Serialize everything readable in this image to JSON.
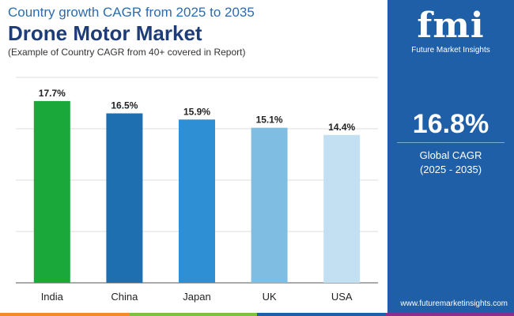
{
  "header": {
    "supertitle": "Country growth CAGR from 2025 to 2035",
    "title": "Drone Motor Market",
    "subtitle": "(Example of Country CAGR from 40+ covered in Report)"
  },
  "chart_data": {
    "type": "bar",
    "categories": [
      "India",
      "China",
      "Japan",
      "UK",
      "USA"
    ],
    "values": [
      17.7,
      16.5,
      15.9,
      15.1,
      14.4
    ],
    "value_labels": [
      "17.7%",
      "16.5%",
      "15.9%",
      "15.1%",
      "14.4%"
    ],
    "colors": [
      "#1aa83a",
      "#1e6fb0",
      "#2e8fd4",
      "#7fbde3",
      "#c2e0f2"
    ],
    "ylim": [
      0,
      20
    ],
    "grid": true,
    "title": "",
    "xlabel": "",
    "ylabel": ""
  },
  "panel": {
    "logo_text": "fmi",
    "logo_subtext": "Future Market Insights",
    "cagr_value": "16.8%",
    "cagr_label": "Global CAGR",
    "cagr_period": "(2025 - 2035)",
    "website": "www.futuremarketinsights.com",
    "background": "#1f5fa8"
  },
  "bottom_strip_colors": [
    "#f28c28",
    "#7cc142",
    "#1f5fa8",
    "#8b2f8f"
  ]
}
